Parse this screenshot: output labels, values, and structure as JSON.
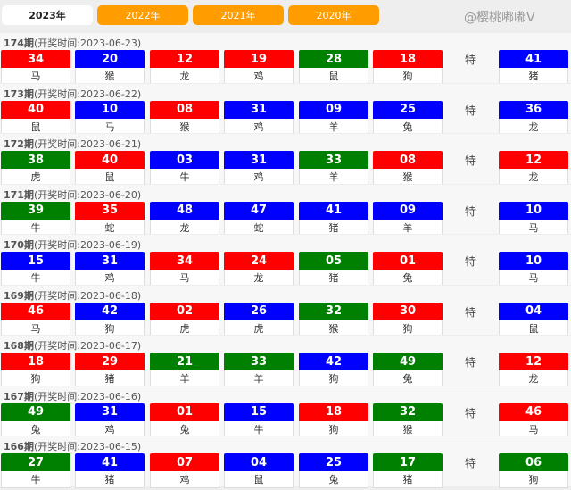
{
  "tabs": [
    {
      "label": "2023年",
      "active": true
    },
    {
      "label": "2022年"
    },
    {
      "label": "2021年"
    },
    {
      "label": "2020年"
    }
  ],
  "colors": {
    "r": "#ff0000",
    "b": "#0000ff",
    "g": "#008000"
  },
  "special_label": "特",
  "watermark": "@樱桃嘟嘟V",
  "draws": [
    {
      "issue": "174期",
      "time": "(开奖时间:2023-06-23)",
      "balls": [
        [
          "34",
          "r",
          "马"
        ],
        [
          "20",
          "b",
          "猴"
        ],
        [
          "12",
          "r",
          "龙"
        ],
        [
          "19",
          "r",
          "鸡"
        ],
        [
          "28",
          "g",
          "鼠"
        ],
        [
          "18",
          "r",
          "狗"
        ]
      ],
      "special": [
        "41",
        "b",
        "猪"
      ]
    },
    {
      "issue": "173期",
      "time": "(开奖时间:2023-06-22)",
      "balls": [
        [
          "40",
          "r",
          "鼠"
        ],
        [
          "10",
          "b",
          "马"
        ],
        [
          "08",
          "r",
          "猴"
        ],
        [
          "31",
          "b",
          "鸡"
        ],
        [
          "09",
          "b",
          "羊"
        ],
        [
          "25",
          "b",
          "兔"
        ]
      ],
      "special": [
        "36",
        "b",
        "龙"
      ]
    },
    {
      "issue": "172期",
      "time": "(开奖时间:2023-06-21)",
      "balls": [
        [
          "38",
          "g",
          "虎"
        ],
        [
          "40",
          "r",
          "鼠"
        ],
        [
          "03",
          "b",
          "牛"
        ],
        [
          "31",
          "b",
          "鸡"
        ],
        [
          "33",
          "g",
          "羊"
        ],
        [
          "08",
          "r",
          "猴"
        ]
      ],
      "special": [
        "12",
        "r",
        "龙"
      ]
    },
    {
      "issue": "171期",
      "time": "(开奖时间:2023-06-20)",
      "balls": [
        [
          "39",
          "g",
          "牛"
        ],
        [
          "35",
          "r",
          "蛇"
        ],
        [
          "48",
          "b",
          "龙"
        ],
        [
          "47",
          "b",
          "蛇"
        ],
        [
          "41",
          "b",
          "猪"
        ],
        [
          "09",
          "b",
          "羊"
        ]
      ],
      "special": [
        "10",
        "b",
        "马"
      ]
    },
    {
      "issue": "170期",
      "time": "(开奖时间:2023-06-19)",
      "balls": [
        [
          "15",
          "b",
          "牛"
        ],
        [
          "31",
          "b",
          "鸡"
        ],
        [
          "34",
          "r",
          "马"
        ],
        [
          "24",
          "r",
          "龙"
        ],
        [
          "05",
          "g",
          "猪"
        ],
        [
          "01",
          "r",
          "兔"
        ]
      ],
      "special": [
        "10",
        "b",
        "马"
      ]
    },
    {
      "issue": "169期",
      "time": "(开奖时间:2023-06-18)",
      "balls": [
        [
          "46",
          "r",
          "马"
        ],
        [
          "42",
          "b",
          "狗"
        ],
        [
          "02",
          "r",
          "虎"
        ],
        [
          "26",
          "b",
          "虎"
        ],
        [
          "32",
          "g",
          "猴"
        ],
        [
          "30",
          "r",
          "狗"
        ]
      ],
      "special": [
        "04",
        "b",
        "鼠"
      ]
    },
    {
      "issue": "168期",
      "time": "(开奖时间:2023-06-17)",
      "balls": [
        [
          "18",
          "r",
          "狗"
        ],
        [
          "29",
          "r",
          "猪"
        ],
        [
          "21",
          "g",
          "羊"
        ],
        [
          "33",
          "g",
          "羊"
        ],
        [
          "42",
          "b",
          "狗"
        ],
        [
          "49",
          "g",
          "兔"
        ]
      ],
      "special": [
        "12",
        "r",
        "龙"
      ]
    },
    {
      "issue": "167期",
      "time": "(开奖时间:2023-06-16)",
      "balls": [
        [
          "49",
          "g",
          "兔"
        ],
        [
          "31",
          "b",
          "鸡"
        ],
        [
          "01",
          "r",
          "兔"
        ],
        [
          "15",
          "b",
          "牛"
        ],
        [
          "18",
          "r",
          "狗"
        ],
        [
          "32",
          "g",
          "猴"
        ]
      ],
      "special": [
        "46",
        "r",
        "马"
      ]
    },
    {
      "issue": "166期",
      "time": "(开奖时间:2023-06-15)",
      "balls": [
        [
          "27",
          "g",
          "牛"
        ],
        [
          "41",
          "b",
          "猪"
        ],
        [
          "07",
          "r",
          "鸡"
        ],
        [
          "04",
          "b",
          "鼠"
        ],
        [
          "25",
          "b",
          "兔"
        ],
        [
          "17",
          "g",
          "猪"
        ]
      ],
      "special": [
        "06",
        "g",
        "狗"
      ]
    }
  ]
}
